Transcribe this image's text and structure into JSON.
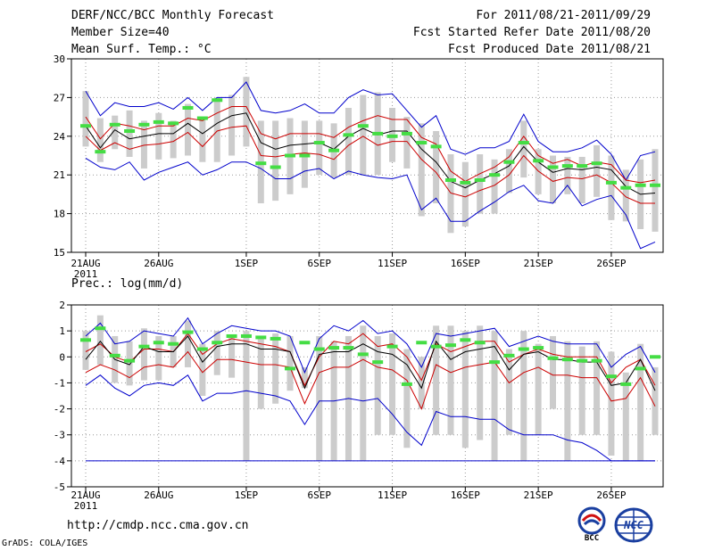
{
  "header": {
    "title": "DERF/NCC/BCC Monthly Forecast",
    "member_size": "Member Size=40",
    "variable": "Mean Surf. Temp.: °C",
    "period": "For 2011/08/21-2011/09/29",
    "fcst_started": "Fcst Started Refer Date 2011/08/20",
    "fcst_produced": "Fcst Produced Date 2011/08/21"
  },
  "footer": {
    "url": "http://cmdp.ncc.cma.gov.cn",
    "credit": "GrADS: COLA/IGES",
    "logo_left_text": "BCC",
    "logo_right_text": "NCC"
  },
  "colors": {
    "max_min": "#0000cc",
    "spread": "#cc0000",
    "mean": "#000000",
    "box": "#cccccc",
    "obs": "#44dd44"
  },
  "chart_data": [
    {
      "type": "line",
      "title": "Mean Surf. Temp.: °C",
      "ylim": [
        15,
        30
      ],
      "yticks": [
        "30",
        "27",
        "24",
        "21",
        "18",
        "15"
      ],
      "ytick_values": [
        30,
        27,
        24,
        21,
        18,
        15
      ],
      "xtick_labels": [
        "21AUG",
        "26AUG",
        "1SEP",
        "6SEP",
        "11SEP",
        "16SEP",
        "21SEP",
        "26SEP"
      ],
      "xtick_days": [
        1,
        6,
        12,
        17,
        22,
        27,
        32,
        37
      ],
      "year_label": "2011",
      "days": 40,
      "series": [
        {
          "name": "max",
          "values": [
            27.5,
            25.6,
            26.6,
            26.3,
            26.3,
            26.6,
            26.1,
            27.0,
            26.0,
            27.0,
            27.0,
            28.2,
            26.0,
            25.8,
            26.0,
            26.5,
            25.8,
            25.8,
            27.0,
            27.6,
            27.2,
            27.3,
            26.0,
            24.7,
            25.6,
            23.0,
            22.6,
            23.1,
            23.1,
            23.6,
            25.7,
            23.6,
            22.8,
            22.8,
            23.1,
            23.7,
            22.6,
            20.6,
            22.5,
            22.8
          ]
        },
        {
          "name": "upper",
          "values": [
            25.5,
            23.8,
            25.0,
            24.8,
            24.5,
            24.8,
            24.8,
            25.4,
            25.2,
            25.8,
            26.3,
            26.3,
            24.2,
            23.8,
            24.2,
            24.2,
            24.2,
            23.9,
            24.7,
            25.2,
            25.6,
            25.3,
            25.3,
            23.9,
            23.4,
            21.3,
            20.5,
            21.1,
            21.6,
            22.4,
            24.0,
            22.5,
            21.9,
            22.2,
            21.7,
            22.0,
            21.8,
            20.6,
            20.4,
            20.6
          ]
        },
        {
          "name": "mean",
          "values": [
            24.8,
            23.1,
            24.5,
            23.8,
            24.0,
            24.2,
            24.2,
            25.0,
            24.2,
            25.0,
            25.6,
            25.8,
            23.5,
            23.0,
            23.3,
            23.4,
            23.5,
            23.0,
            24.0,
            24.6,
            24.1,
            24.4,
            24.4,
            23.0,
            22.0,
            20.5,
            20.0,
            20.6,
            21.1,
            21.7,
            23.2,
            22.0,
            21.2,
            21.5,
            21.4,
            21.6,
            21.4,
            20.1,
            19.5,
            19.6
          ]
        },
        {
          "name": "lower",
          "values": [
            24.0,
            22.9,
            23.5,
            23.0,
            23.3,
            23.4,
            23.6,
            24.3,
            23.2,
            24.4,
            24.7,
            24.8,
            22.5,
            22.4,
            22.6,
            22.7,
            22.6,
            22.2,
            23.3,
            24.0,
            23.3,
            23.6,
            23.6,
            22.2,
            21.2,
            19.6,
            19.3,
            19.8,
            20.2,
            21.0,
            22.5,
            21.3,
            20.5,
            20.8,
            20.7,
            21.0,
            20.4,
            19.3,
            18.8,
            18.8
          ]
        },
        {
          "name": "min",
          "values": [
            22.3,
            21.6,
            21.4,
            22.0,
            20.6,
            21.2,
            21.6,
            22.0,
            21.0,
            21.4,
            22.0,
            22.0,
            21.5,
            20.7,
            20.7,
            21.3,
            21.5,
            20.7,
            21.3,
            21.0,
            20.8,
            20.7,
            21.0,
            18.3,
            19.2,
            17.4,
            17.4,
            18.2,
            18.9,
            19.7,
            20.2,
            19.0,
            18.8,
            20.2,
            18.6,
            19.1,
            19.4,
            17.9,
            15.3,
            15.8
          ]
        },
        {
          "name": "observed",
          "values": [
            24.8,
            22.8,
            24.9,
            24.4,
            24.9,
            25.1,
            25.0,
            26.2,
            25.4,
            26.8,
            null,
            null,
            21.9,
            21.6,
            22.5,
            22.5,
            23.5,
            22.9,
            24.1,
            24.8,
            24.2,
            24.0,
            24.2,
            23.5,
            23.2,
            20.6,
            20.4,
            20.6,
            21.0,
            22.0,
            23.5,
            22.1,
            21.6,
            21.7,
            21.7,
            21.9,
            20.4,
            20.0,
            20.2,
            20.2
          ]
        }
      ],
      "box_bounds": [
        [
          23.2,
          27.5
        ],
        [
          22.0,
          25.4
        ],
        [
          23.0,
          25.6
        ],
        [
          22.4,
          26.0
        ],
        [
          21.5,
          25.2
        ],
        [
          22.2,
          25.8
        ],
        [
          22.3,
          25.2
        ],
        [
          22.5,
          26.5
        ],
        [
          22.0,
          25.4
        ],
        [
          22.0,
          27.0
        ],
        [
          22.5,
          27.2
        ],
        [
          23.2,
          28.6
        ],
        [
          18.8,
          25.2
        ],
        [
          19.0,
          25.2
        ],
        [
          19.5,
          25.4
        ],
        [
          20.0,
          25.2
        ],
        [
          21.0,
          25.2
        ],
        [
          20.8,
          25.0
        ],
        [
          21.0,
          26.2
        ],
        [
          21.0,
          27.2
        ],
        [
          21.0,
          27.4
        ],
        [
          22.0,
          26.2
        ],
        [
          21.5,
          25.5
        ],
        [
          17.8,
          25.0
        ],
        [
          18.8,
          24.4
        ],
        [
          16.5,
          22.6
        ],
        [
          17.0,
          22.0
        ],
        [
          18.0,
          22.6
        ],
        [
          18.0,
          22.2
        ],
        [
          19.6,
          23.0
        ],
        [
          20.8,
          25.2
        ],
        [
          19.5,
          23.0
        ],
        [
          18.8,
          22.5
        ],
        [
          19.5,
          22.4
        ],
        [
          18.8,
          22.4
        ],
        [
          19.3,
          23.3
        ],
        [
          17.5,
          22.5
        ],
        [
          17.4,
          21.4
        ],
        [
          16.8,
          22.2
        ],
        [
          16.6,
          23.0
        ]
      ]
    },
    {
      "type": "line",
      "title": "Prec.: log(mm/d)",
      "ylim": [
        -5,
        2
      ],
      "yticks": [
        "2",
        "1",
        "0",
        "-1",
        "-2",
        "-3",
        "-4",
        "-5"
      ],
      "ytick_values": [
        2,
        1,
        0,
        -1,
        -2,
        -3,
        -4,
        -5
      ],
      "xtick_labels": [
        "21AUG",
        "26AUG",
        "1SEP",
        "6SEP",
        "11SEP",
        "16SEP",
        "21SEP",
        "26SEP"
      ],
      "xtick_days": [
        1,
        6,
        12,
        17,
        22,
        27,
        32,
        37
      ],
      "year_label": "2011",
      "days": 40,
      "series": [
        {
          "name": "max",
          "values": [
            0.8,
            1.3,
            0.5,
            0.6,
            1.0,
            0.9,
            0.8,
            1.5,
            0.5,
            0.9,
            1.2,
            1.1,
            1.0,
            1.0,
            0.8,
            -0.6,
            0.7,
            1.2,
            1.0,
            1.4,
            0.9,
            1.0,
            0.5,
            -0.4,
            0.9,
            0.8,
            0.9,
            1.0,
            1.1,
            0.4,
            0.6,
            0.8,
            0.6,
            0.5,
            0.5,
            0.5,
            -0.4,
            0.1,
            0.4,
            -0.6
          ]
        },
        {
          "name": "upper",
          "values": [
            0.2,
            0.5,
            0.0,
            -0.2,
            0.3,
            0.3,
            0.2,
            0.9,
            0.1,
            0.5,
            0.7,
            0.6,
            0.5,
            0.4,
            0.2,
            -1.1,
            0.0,
            0.6,
            0.5,
            0.9,
            0.4,
            0.5,
            0.0,
            -0.9,
            0.5,
            0.2,
            0.4,
            0.6,
            0.6,
            -0.2,
            0.1,
            0.3,
            0.1,
            0.0,
            0.0,
            0.0,
            -1.0,
            -0.4,
            -0.1,
            -1.1
          ]
        },
        {
          "name": "mean",
          "values": [
            -0.1,
            0.6,
            -0.1,
            -0.3,
            0.4,
            0.2,
            0.2,
            0.8,
            -0.2,
            0.4,
            0.5,
            0.5,
            0.3,
            0.3,
            0.2,
            -1.2,
            0.1,
            0.2,
            0.2,
            0.5,
            0.2,
            0.1,
            -0.3,
            -1.2,
            0.6,
            -0.1,
            0.2,
            0.3,
            0.4,
            -0.5,
            0.1,
            0.2,
            -0.1,
            -0.1,
            -0.2,
            -0.2,
            -1.1,
            -1.0,
            -0.1,
            -1.3
          ]
        },
        {
          "name": "lower",
          "values": [
            -0.6,
            -0.3,
            -0.5,
            -0.8,
            -0.4,
            -0.3,
            -0.4,
            0.2,
            -0.6,
            -0.1,
            -0.1,
            -0.2,
            -0.3,
            -0.3,
            -0.4,
            -1.8,
            -0.6,
            -0.4,
            -0.4,
            -0.1,
            -0.4,
            -0.5,
            -0.9,
            -2.0,
            -0.3,
            -0.6,
            -0.4,
            -0.3,
            -0.2,
            -1.0,
            -0.6,
            -0.4,
            -0.7,
            -0.7,
            -0.8,
            -0.8,
            -1.7,
            -1.6,
            -0.8,
            -1.9
          ]
        },
        {
          "name": "min",
          "values": [
            -1.1,
            -0.7,
            -1.2,
            -1.5,
            -1.1,
            -1.0,
            -1.1,
            -0.7,
            -1.7,
            -1.4,
            -1.4,
            -1.3,
            -1.4,
            -1.5,
            -1.7,
            -2.6,
            -1.7,
            -1.7,
            -1.6,
            -1.7,
            -1.6,
            -2.2,
            -2.9,
            -3.4,
            -2.1,
            -2.3,
            -2.3,
            -2.4,
            -2.4,
            -2.8,
            -3.0,
            -3.0,
            -3.0,
            -3.2,
            -3.3,
            -3.6,
            -4.0,
            -4.0,
            -4.0,
            -4.0
          ]
        },
        {
          "name": "observed",
          "values": [
            0.65,
            1.1,
            0.05,
            -0.15,
            0.4,
            0.55,
            0.5,
            0.95,
            0.3,
            0.55,
            0.8,
            0.8,
            0.75,
            0.7,
            -0.45,
            0.55,
            0.3,
            0.35,
            0.35,
            0.1,
            -0.2,
            0.4,
            -1.05,
            0.55,
            0.4,
            0.45,
            0.65,
            0.55,
            -0.2,
            0.05,
            0.3,
            0.35,
            -0.05,
            -0.1,
            -0.15,
            -0.15,
            -0.75,
            -1.05,
            -0.45,
            0.0
          ]
        }
      ],
      "floor_line": -4,
      "box_bounds": [
        [
          -0.5,
          1.0
        ],
        [
          -0.3,
          1.6
        ],
        [
          -1.0,
          0.8
        ],
        [
          -1.1,
          0.6
        ],
        [
          -0.9,
          1.1
        ],
        [
          -0.9,
          0.8
        ],
        [
          -0.4,
          0.8
        ],
        [
          -0.4,
          1.4
        ],
        [
          -1.5,
          0.5
        ],
        [
          -0.7,
          1.0
        ],
        [
          -0.8,
          0.8
        ],
        [
          -4.0,
          1.0
        ],
        [
          -2.0,
          0.8
        ],
        [
          -1.8,
          0.9
        ],
        [
          -1.3,
          0.8
        ],
        [
          -1.2,
          -0.4
        ],
        [
          -4.0,
          0.8
        ],
        [
          -4.0,
          0.6
        ],
        [
          -4.0,
          0.8
        ],
        [
          -4.0,
          1.2
        ],
        [
          -3.0,
          0.8
        ],
        [
          -3.0,
          0.9
        ],
        [
          -3.5,
          0.3
        ],
        [
          -2.0,
          0.0
        ],
        [
          -3.0,
          1.2
        ],
        [
          -3.0,
          1.2
        ],
        [
          -3.5,
          1.0
        ],
        [
          -3.2,
          1.2
        ],
        [
          -4.0,
          1.0
        ],
        [
          -3.0,
          0.3
        ],
        [
          -4.0,
          1.0
        ],
        [
          -3.0,
          0.5
        ],
        [
          -2.0,
          0.8
        ],
        [
          -4.0,
          0.6
        ],
        [
          -3.0,
          0.4
        ],
        [
          -3.0,
          0.6
        ],
        [
          -3.8,
          0.2
        ],
        [
          -4.0,
          -0.6
        ],
        [
          -4.0,
          0.5
        ],
        [
          -3.0,
          -0.4
        ]
      ]
    }
  ]
}
